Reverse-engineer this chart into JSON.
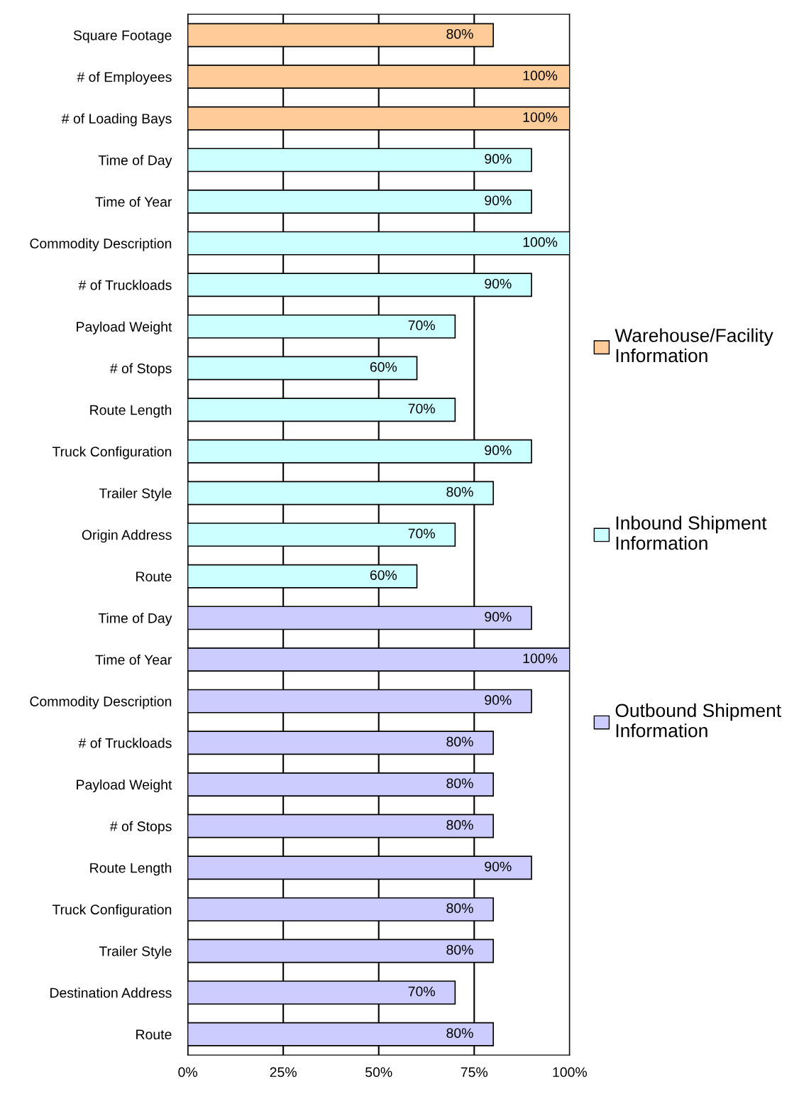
{
  "chart_data": {
    "type": "bar",
    "orientation": "horizontal",
    "categories": [
      "Square Footage",
      "# of Employees",
      "# of Loading Bays",
      "Time of Day",
      "Time of Year",
      "Commodity Description",
      "# of Truckloads",
      "Payload Weight",
      "# of Stops",
      "Route Length",
      "Truck Configuration",
      "Trailer Style",
      "Origin Address",
      "Route",
      "Time of Day",
      "Time of Year",
      "Commodity Description",
      "# of Truckloads",
      "Payload Weight",
      "# of Stops",
      "Route Length",
      "Truck Configuration",
      "Trailer Style",
      "Destination Address",
      "Route"
    ],
    "series": [
      {
        "name": "Warehouse/Facility\nInformation",
        "color": "#ffcc99",
        "values": [
          80,
          100,
          100,
          null,
          null,
          null,
          null,
          null,
          null,
          null,
          null,
          null,
          null,
          null,
          null,
          null,
          null,
          null,
          null,
          null,
          null,
          null,
          null,
          null,
          null
        ],
        "value_labels": [
          "80%",
          "100%",
          "100%",
          null,
          null,
          null,
          null,
          null,
          null,
          null,
          null,
          null,
          null,
          null,
          null,
          null,
          null,
          null,
          null,
          null,
          null,
          null,
          null,
          null,
          null
        ]
      },
      {
        "name": "Inbound Shipment\nInformation",
        "color": "#ccffff",
        "values": [
          null,
          null,
          null,
          90,
          90,
          100,
          90,
          70,
          60,
          70,
          90,
          80,
          70,
          60,
          null,
          null,
          null,
          null,
          null,
          null,
          null,
          null,
          null,
          null,
          null
        ],
        "value_labels": [
          null,
          null,
          null,
          "90%",
          "90%",
          "100%",
          "90%",
          "70%",
          "60%",
          "70%",
          "90%",
          "80%",
          "70%",
          "60%",
          null,
          null,
          null,
          null,
          null,
          null,
          null,
          null,
          null,
          null,
          null
        ]
      },
      {
        "name": "Outbound Shipment\nInformation",
        "color": "#ccccff",
        "values": [
          null,
          null,
          null,
          null,
          null,
          null,
          null,
          null,
          null,
          null,
          null,
          null,
          null,
          null,
          90,
          100,
          90,
          80,
          80,
          80,
          90,
          80,
          80,
          70,
          80
        ],
        "value_labels": [
          null,
          null,
          null,
          null,
          null,
          null,
          null,
          null,
          null,
          null,
          null,
          null,
          null,
          null,
          "90%",
          "100%",
          "90%",
          "80%",
          "80%",
          "80%",
          "90%",
          "80%",
          "80%",
          "70%",
          "80%"
        ]
      }
    ],
    "xlim": [
      0,
      100
    ],
    "xticks": [
      {
        "value": 0,
        "label": "0%"
      },
      {
        "value": 25,
        "label": "25%"
      },
      {
        "value": 50,
        "label": "50%"
      },
      {
        "value": 75,
        "label": "75%"
      },
      {
        "value": 100,
        "label": "100%"
      }
    ],
    "grid": "x",
    "legend": "right"
  }
}
